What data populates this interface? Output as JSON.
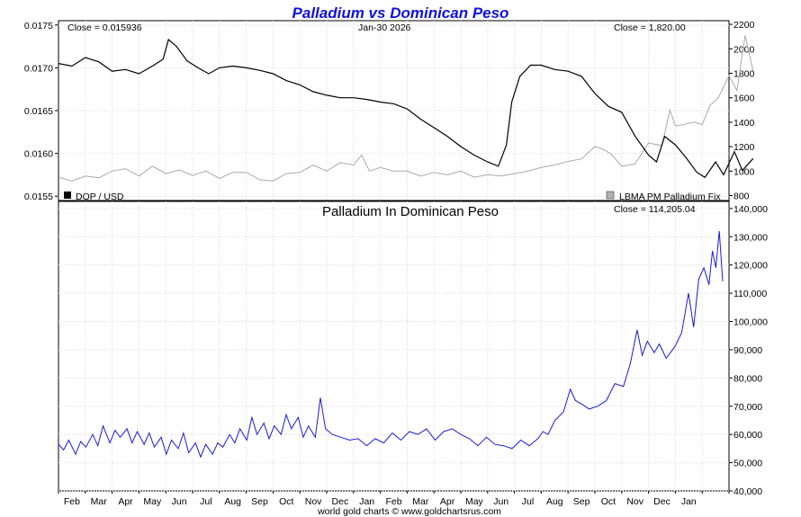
{
  "title": "Palladium vs Dominican Peso",
  "footer": "world gold charts © www.goldchartsrus.com",
  "colors": {
    "title": "#1010e0",
    "dop": "#000000",
    "palladium": "#a9a9a9",
    "ratio": "#1a1ad6"
  },
  "chart_data": [
    {
      "type": "line",
      "panel": "top",
      "date_label": "Jan-30  2026",
      "left_close": "Close = 0.015936",
      "right_close": "Close = 1,820.00",
      "left_axis": {
        "ylim": [
          0.01545,
          0.01755
        ],
        "ticks": [
          "0.0155",
          "0.0160",
          "0.0165",
          "0.0170",
          "0.0175"
        ],
        "tick_values": [
          0.0155,
          0.016,
          0.0165,
          0.017,
          0.0175
        ]
      },
      "right_axis": {
        "ylim": [
          760,
          2230
        ],
        "ticks": [
          "800",
          "1000",
          "1200",
          "1400",
          "1600",
          "1800",
          "2000",
          "2200"
        ],
        "tick_values": [
          800,
          1000,
          1200,
          1400,
          1600,
          1800,
          2000,
          2200
        ]
      },
      "x_range_months": [
        0,
        25
      ],
      "legend": [
        {
          "label": "DOP / USD",
          "swatch": "#000000",
          "position": "bottom-left"
        },
        {
          "label": "LBMA PM Palladium Fix",
          "swatch": "#b0b0b0",
          "position": "bottom-right"
        }
      ],
      "series": [
        {
          "name": "DOP / USD",
          "axis": "left",
          "points": [
            [
              0,
              0.01705
            ],
            [
              0.5,
              0.01702
            ],
            [
              1.0,
              0.01712
            ],
            [
              1.5,
              0.01707
            ],
            [
              2.0,
              0.01696
            ],
            [
              2.5,
              0.01698
            ],
            [
              3.0,
              0.01693
            ],
            [
              3.5,
              0.01702
            ],
            [
              3.9,
              0.0171
            ],
            [
              4.1,
              0.01733
            ],
            [
              4.4,
              0.01725
            ],
            [
              4.8,
              0.01708
            ],
            [
              5.2,
              0.017
            ],
            [
              5.6,
              0.01693
            ],
            [
              6.0,
              0.017
            ],
            [
              6.5,
              0.01702
            ],
            [
              7.0,
              0.017
            ],
            [
              7.5,
              0.01697
            ],
            [
              8.0,
              0.01693
            ],
            [
              8.5,
              0.01685
            ],
            [
              9.0,
              0.0168
            ],
            [
              9.5,
              0.01672
            ],
            [
              10.0,
              0.01668
            ],
            [
              10.5,
              0.01665
            ],
            [
              11.0,
              0.01665
            ],
            [
              11.5,
              0.01663
            ],
            [
              12.0,
              0.0166
            ],
            [
              12.5,
              0.01658
            ],
            [
              13.0,
              0.01652
            ],
            [
              13.5,
              0.0164
            ],
            [
              14.0,
              0.0163
            ],
            [
              14.5,
              0.0162
            ],
            [
              15.0,
              0.01608
            ],
            [
              15.5,
              0.01598
            ],
            [
              16.0,
              0.0159
            ],
            [
              16.4,
              0.01585
            ],
            [
              16.7,
              0.0161
            ],
            [
              16.9,
              0.0166
            ],
            [
              17.2,
              0.0169
            ],
            [
              17.6,
              0.01703
            ],
            [
              18.0,
              0.01703
            ],
            [
              18.5,
              0.01698
            ],
            [
              19.0,
              0.01696
            ],
            [
              19.5,
              0.0169
            ],
            [
              20.0,
              0.0167
            ],
            [
              20.5,
              0.01655
            ],
            [
              21.0,
              0.01648
            ],
            [
              21.5,
              0.0162
            ],
            [
              22.0,
              0.01598
            ],
            [
              22.3,
              0.0159
            ],
            [
              22.6,
              0.0162
            ],
            [
              23.0,
              0.0161
            ],
            [
              23.4,
              0.01595
            ],
            [
              23.8,
              0.01578
            ],
            [
              24.1,
              0.01572
            ],
            [
              24.5,
              0.0159
            ],
            [
              24.8,
              0.01575
            ],
            [
              25.2,
              0.01602
            ],
            [
              25.5,
              0.0158
            ],
            [
              25.9,
              0.01594
            ]
          ]
        },
        {
          "name": "LBMA PM Palladium Fix",
          "axis": "right",
          "points": [
            [
              0,
              950
            ],
            [
              0.5,
              920
            ],
            [
              1.0,
              960
            ],
            [
              1.5,
              945
            ],
            [
              2.0,
              1000
            ],
            [
              2.5,
              1020
            ],
            [
              3.0,
              960
            ],
            [
              3.5,
              1040
            ],
            [
              4.0,
              980
            ],
            [
              4.5,
              1010
            ],
            [
              5.0,
              965
            ],
            [
              5.5,
              1000
            ],
            [
              6.0,
              940
            ],
            [
              6.5,
              990
            ],
            [
              7.0,
              990
            ],
            [
              7.5,
              930
            ],
            [
              8.0,
              920
            ],
            [
              8.5,
              980
            ],
            [
              9.0,
              990
            ],
            [
              9.5,
              1050
            ],
            [
              10.0,
              1000
            ],
            [
              10.5,
              1070
            ],
            [
              11.0,
              1050
            ],
            [
              11.3,
              1130
            ],
            [
              11.6,
              1000
            ],
            [
              12.0,
              1030
            ],
            [
              12.5,
              1000
            ],
            [
              13.0,
              1000
            ],
            [
              13.5,
              960
            ],
            [
              14.0,
              990
            ],
            [
              14.5,
              970
            ],
            [
              15.0,
              1000
            ],
            [
              15.5,
              950
            ],
            [
              16.0,
              970
            ],
            [
              16.5,
              960
            ],
            [
              17.0,
              980
            ],
            [
              17.5,
              1000
            ],
            [
              18.0,
              1030
            ],
            [
              18.5,
              1050
            ],
            [
              19.0,
              1080
            ],
            [
              19.5,
              1100
            ],
            [
              20.0,
              1200
            ],
            [
              20.3,
              1180
            ],
            [
              20.6,
              1140
            ],
            [
              21.0,
              1040
            ],
            [
              21.5,
              1060
            ],
            [
              22.0,
              1230
            ],
            [
              22.5,
              1210
            ],
            [
              22.8,
              1500
            ],
            [
              23.0,
              1370
            ],
            [
              23.3,
              1380
            ],
            [
              23.7,
              1400
            ],
            [
              24.0,
              1380
            ],
            [
              24.3,
              1540
            ],
            [
              24.6,
              1600
            ],
            [
              25.0,
              1780
            ],
            [
              25.3,
              1660
            ],
            [
              25.6,
              2110
            ],
            [
              25.9,
              1820
            ]
          ]
        }
      ]
    },
    {
      "type": "line",
      "panel": "bottom",
      "title": "Palladium In Dominican Peso",
      "right_close": "Close = 114,205.04",
      "axis": {
        "ylim": [
          40000,
          142500
        ],
        "ticks": [
          "40,000",
          "50,000",
          "60,000",
          "70,000",
          "80,000",
          "90,000",
          "100,000",
          "110,000",
          "120,000",
          "130,000",
          "140,000"
        ],
        "tick_values": [
          40000,
          50000,
          60000,
          70000,
          80000,
          90000,
          100000,
          110000,
          120000,
          130000,
          140000
        ]
      },
      "x_axis": {
        "labels": [
          "Feb",
          "Mar",
          "Apr",
          "May",
          "Jun",
          "Jul",
          "Aug",
          "Sep",
          "Oct",
          "Nov",
          "Dec",
          "Jan",
          "Feb",
          "Mar",
          "Apr",
          "May",
          "Jun",
          "Jul",
          "Aug",
          "Sep",
          "Oct",
          "Nov",
          "Dec",
          "Jan"
        ],
        "label_positions": [
          0.5,
          1.5,
          2.5,
          3.5,
          4.5,
          5.5,
          6.5,
          7.5,
          8.5,
          9.5,
          10.5,
          11.5,
          12.5,
          13.5,
          14.5,
          15.5,
          16.5,
          17.5,
          18.5,
          19.5,
          20.5,
          21.5,
          22.5,
          23.5
        ]
      },
      "series": [
        {
          "name": "Palladium In Dominican Peso",
          "points": [
            [
              0,
              56500
            ],
            [
              0.3,
              54500
            ],
            [
              0.6,
              58000
            ],
            [
              1.0,
              53000
            ],
            [
              1.3,
              57500
            ],
            [
              1.6,
              55500
            ],
            [
              2.0,
              60000
            ],
            [
              2.3,
              56000
            ],
            [
              2.6,
              63000
            ],
            [
              3.0,
              57000
            ],
            [
              3.3,
              61500
            ],
            [
              3.6,
              59000
            ],
            [
              4.0,
              62000
            ],
            [
              4.3,
              57000
            ],
            [
              4.6,
              61000
            ],
            [
              5.0,
              56500
            ],
            [
              5.3,
              60500
            ],
            [
              5.6,
              55500
            ],
            [
              6.0,
              59000
            ],
            [
              6.3,
              53000
            ],
            [
              6.6,
              58000
            ],
            [
              7.0,
              55000
            ],
            [
              7.3,
              60500
            ],
            [
              7.6,
              53500
            ],
            [
              8.0,
              57000
            ],
            [
              8.3,
              52000
            ],
            [
              8.6,
              56500
            ],
            [
              9.0,
              53000
            ],
            [
              9.3,
              57000
            ],
            [
              9.6,
              55500
            ],
            [
              10.0,
              60000
            ],
            [
              10.3,
              57000
            ],
            [
              10.6,
              62000
            ],
            [
              11.0,
              58000
            ],
            [
              11.3,
              66000
            ],
            [
              11.6,
              60000
            ],
            [
              12.0,
              64000
            ],
            [
              12.3,
              58500
            ],
            [
              12.6,
              63000
            ],
            [
              13.0,
              60000
            ],
            [
              13.3,
              67000
            ],
            [
              13.6,
              62000
            ],
            [
              14.0,
              66000
            ],
            [
              14.3,
              59000
            ],
            [
              14.6,
              63000
            ],
            [
              15.0,
              59000
            ],
            [
              15.3,
              73000
            ],
            [
              15.6,
              62000
            ],
            [
              16.0,
              60000
            ],
            [
              16.5,
              59000
            ],
            [
              17.0,
              58000
            ],
            [
              17.5,
              58500
            ],
            [
              18.0,
              56000
            ],
            [
              18.5,
              58500
            ],
            [
              19.0,
              57000
            ],
            [
              19.5,
              60500
            ],
            [
              20.0,
              58000
            ],
            [
              20.5,
              61000
            ],
            [
              21.0,
              60000
            ],
            [
              21.5,
              62000
            ],
            [
              22.0,
              58000
            ],
            [
              22.5,
              61000
            ],
            [
              23.0,
              62000
            ],
            [
              23.5,
              60000
            ],
            [
              24.0,
              58500
            ],
            [
              24.5,
              56000
            ],
            [
              25.0,
              59000
            ],
            [
              25.5,
              56500
            ],
            [
              26.0,
              56000
            ],
            [
              26.5,
              55000
            ],
            [
              27.0,
              58000
            ],
            [
              27.5,
              56000
            ],
            [
              28.0,
              58500
            ],
            [
              28.3,
              61000
            ],
            [
              28.6,
              60000
            ],
            [
              29.0,
              65000
            ],
            [
              29.5,
              68000
            ],
            [
              29.9,
              76000
            ],
            [
              30.2,
              72000
            ],
            [
              30.5,
              71000
            ],
            [
              31.0,
              69000
            ],
            [
              31.5,
              70000
            ],
            [
              32.0,
              72000
            ],
            [
              32.5,
              78000
            ],
            [
              33.0,
              77000
            ],
            [
              33.4,
              85000
            ],
            [
              33.8,
              97000
            ],
            [
              34.1,
              88000
            ],
            [
              34.4,
              93000
            ],
            [
              34.8,
              89000
            ],
            [
              35.1,
              92000
            ],
            [
              35.5,
              87000
            ],
            [
              36.0,
              91000
            ],
            [
              36.4,
              96000
            ],
            [
              36.8,
              110000
            ],
            [
              37.1,
              98000
            ],
            [
              37.4,
              115000
            ],
            [
              37.7,
              119000
            ],
            [
              38.0,
              113000
            ],
            [
              38.2,
              125000
            ],
            [
              38.4,
              119000
            ],
            [
              38.6,
              132000
            ],
            [
              38.8,
              114205
            ]
          ]
        }
      ]
    }
  ]
}
